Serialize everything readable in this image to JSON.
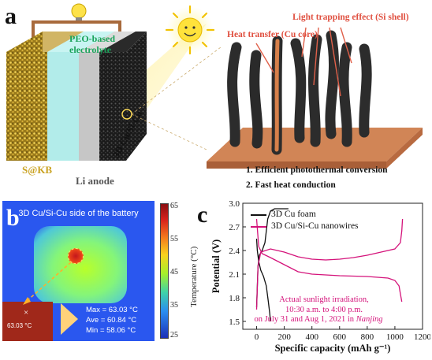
{
  "panel_a": {
    "letter": "a",
    "electrolyte_label_line1": "PEO-based",
    "electrolyte_label_line2": "electrolyte",
    "cathode_label": "S@KB",
    "anode_label": "Li anode",
    "host_label": "3D Cu/Si-Cu",
    "light_trapping_label": "Light trapping effect (Si shell)",
    "heat_transfer_label": "Heat transfer (Cu core)",
    "point1": "1. Efficient photothermal conversion",
    "point2": "2. Fast heat conduction"
  },
  "panel_b": {
    "letter": "b",
    "title": "3D Cu/Si-Cu side of the battery",
    "inset_temp": "63.03 °C",
    "max_text": "Max = 63.03 °C",
    "ave_text": "Ave = 60.84 °C",
    "min_text": "Min = 58.06 °C",
    "colorbar_label": "Temperature (°C)",
    "colorbar_ticks": [
      "65",
      "55",
      "45",
      "35",
      "25"
    ]
  },
  "panel_c": {
    "letter": "c",
    "legend_1": "3D Cu foam",
    "legend_2": "3D Cu/Si-Cu nanowires",
    "annotation_1": "Actual sunlight irradiation,",
    "annotation_2": "10:30 a.m. to 4:00 p.m.",
    "annotation_3_prefix": "on July 31 and Aug 1, 2021 in ",
    "annotation_3_place": "Nanjing",
    "colors": {
      "cu_foam": "#111111",
      "cu_si": "#d4127a"
    }
  },
  "chart_data": {
    "type": "line",
    "xlabel": "Specific capacity (mAh g⁻¹)",
    "ylabel": "Potential (V)",
    "xlim": [
      -100,
      1200
    ],
    "ylim": [
      1.4,
      3.0
    ],
    "xticks": [
      0,
      200,
      400,
      600,
      800,
      1000,
      1200
    ],
    "yticks": [
      1.5,
      1.8,
      2.1,
      2.4,
      2.7,
      3.0
    ],
    "series": [
      {
        "name": "3D Cu foam",
        "color": "#111111",
        "segments": [
          [
            [
              0,
              2.55
            ],
            [
              5,
              2.4
            ],
            [
              15,
              2.26
            ],
            [
              30,
              2.15
            ],
            [
              50,
              2.07
            ],
            [
              70,
              1.95
            ],
            [
              85,
              1.75
            ],
            [
              95,
              1.6
            ],
            [
              100,
              1.5
            ]
          ],
          [
            [
              0,
              1.68
            ],
            [
              10,
              2.2
            ],
            [
              20,
              2.34
            ],
            [
              40,
              2.4
            ],
            [
              60,
              2.5
            ],
            [
              80,
              2.8
            ],
            [
              100,
              2.9
            ],
            [
              130,
              2.93
            ],
            [
              230,
              2.93
            ]
          ]
        ]
      },
      {
        "name": "3D Cu/Si-Cu nanowires",
        "color": "#d4127a",
        "segments": [
          [
            [
              0,
              2.8
            ],
            [
              15,
              2.45
            ],
            [
              40,
              2.36
            ],
            [
              100,
              2.31
            ],
            [
              200,
              2.22
            ],
            [
              300,
              2.13
            ],
            [
              400,
              2.1
            ],
            [
              600,
              2.08
            ],
            [
              800,
              2.07
            ],
            [
              950,
              2.05
            ],
            [
              1000,
              2.02
            ],
            [
              1030,
              1.95
            ],
            [
              1040,
              1.85
            ],
            [
              1050,
              1.75
            ]
          ],
          [
            [
              0,
              1.65
            ],
            [
              10,
              2.2
            ],
            [
              30,
              2.38
            ],
            [
              100,
              2.42
            ],
            [
              200,
              2.38
            ],
            [
              300,
              2.32
            ],
            [
              400,
              2.29
            ],
            [
              500,
              2.28
            ],
            [
              600,
              2.29
            ],
            [
              700,
              2.31
            ],
            [
              800,
              2.34
            ],
            [
              900,
              2.38
            ],
            [
              1000,
              2.42
            ],
            [
              1040,
              2.5
            ],
            [
              1050,
              2.65
            ],
            [
              1055,
              2.8
            ]
          ]
        ]
      }
    ]
  }
}
